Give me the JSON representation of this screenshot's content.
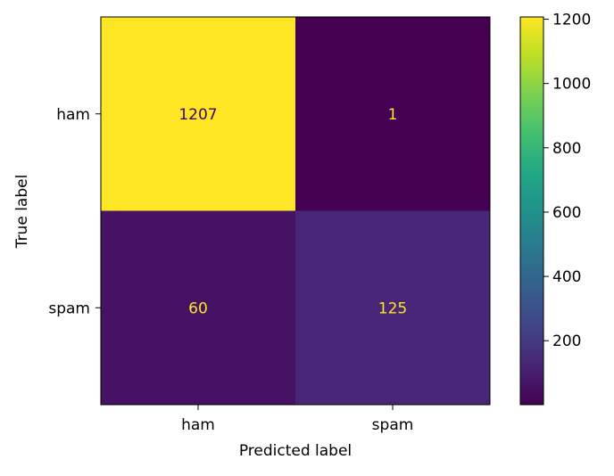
{
  "chart_data": {
    "type": "heatmap",
    "title": "",
    "xlabel": "Predicted label",
    "ylabel": "True label",
    "x_categories": [
      "ham",
      "spam"
    ],
    "y_categories": [
      "ham",
      "spam"
    ],
    "values": [
      [
        1207,
        1
      ],
      [
        60,
        125
      ]
    ],
    "colormap": "viridis",
    "colorbar": {
      "min": 1,
      "max": 1207,
      "ticks": [
        200,
        400,
        600,
        800,
        1000,
        1200
      ]
    },
    "colors": {
      "low_text": "#fde725",
      "high_text": "#440154"
    }
  }
}
